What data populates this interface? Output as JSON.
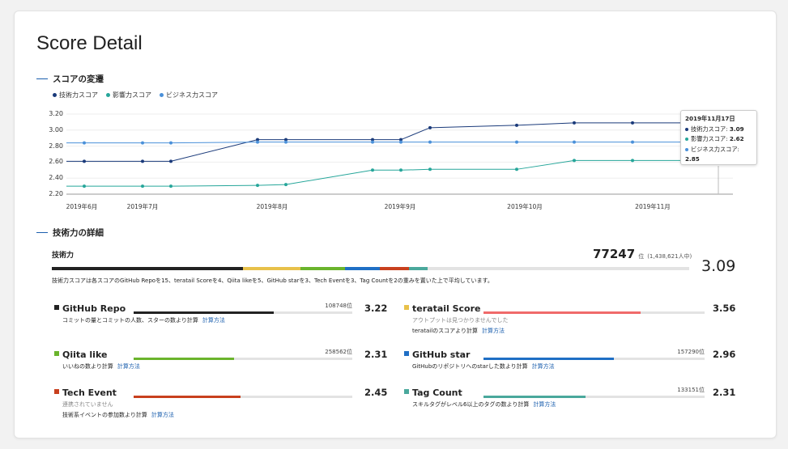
{
  "page_title": "Score Detail",
  "score_section": {
    "heading": "スコアの変遷"
  },
  "legend": [
    {
      "label": "技術力スコア",
      "color": "#1a3a7a"
    },
    {
      "label": "影響力スコア",
      "color": "#26a69a"
    },
    {
      "label": "ビジネス力スコア",
      "color": "#4a90d9"
    }
  ],
  "chart_data": {
    "type": "line",
    "ylim": [
      2.2,
      3.2
    ],
    "yticks": [
      "3.20",
      "3.00",
      "2.80",
      "2.60",
      "2.40",
      "2.20"
    ],
    "xticks": [
      "2019年6月",
      "2019年7月",
      "2019年8月",
      "2019年9月",
      "2019年10月",
      "2019年11月"
    ],
    "series": [
      {
        "name": "技術力スコア",
        "color": "#1a3a7a",
        "values": [
          2.61,
          2.61,
          2.61,
          2.88,
          2.88,
          2.88,
          2.88,
          3.03,
          3.06,
          3.09,
          3.09,
          3.09
        ]
      },
      {
        "name": "影響力スコア",
        "color": "#26a69a",
        "values": [
          2.3,
          2.3,
          2.3,
          2.31,
          2.32,
          2.5,
          2.5,
          2.51,
          2.51,
          2.62,
          2.62,
          2.62
        ]
      },
      {
        "name": "ビジネス力スコア",
        "color": "#4a90d9",
        "values": [
          2.84,
          2.84,
          2.84,
          2.85,
          2.85,
          2.85,
          2.85,
          2.85,
          2.85,
          2.85,
          2.85,
          2.85
        ]
      }
    ]
  },
  "tooltip": {
    "date": "2019年11月17日",
    "rows": [
      {
        "label": "技術力スコア:",
        "value": "3.09",
        "color": "#1a3a7a"
      },
      {
        "label": "影響力スコア:",
        "value": "2.62",
        "color": "#26a69a"
      },
      {
        "label": "ビジネス力スコア:",
        "value": "2.85",
        "color": "#4a90d9"
      }
    ]
  },
  "detail_section": {
    "heading": "技術力の詳細"
  },
  "skill": {
    "name": "技術力",
    "rank": "77247",
    "rank_unit": "位",
    "rank_total": "(1,438,621人中)",
    "score": "3.09",
    "description": "技術力スコアは各スコアのGitHub Repoを15、teratail Scoreを4、Qiita likeを5、GitHub starを3、Tech Eventを3、Tag Countを2の重みを置いた上で平均しています。",
    "segments": [
      {
        "color": "#222222",
        "weight": 30
      },
      {
        "color": "#e8c14a",
        "weight": 9
      },
      {
        "color": "#6ab42c",
        "weight": 7
      },
      {
        "color": "#1f6fc5",
        "weight": 5.5
      },
      {
        "color": "#c8401e",
        "weight": 4.5
      },
      {
        "color": "#4aa89c",
        "weight": 3
      }
    ]
  },
  "items": [
    {
      "name": "GitHub Repo",
      "color": "#222222",
      "rank": "108748位",
      "value": "3.22",
      "fill": 0.64,
      "sub": "コミットの量とコミットの人数、スターの数より計算",
      "sub_gray": "",
      "link": "計算方法"
    },
    {
      "name": "teratail Score",
      "color": "#e8c14a",
      "rank": "",
      "value": "3.56",
      "fill": 0.71,
      "bar_color": "#f06a6a",
      "sub_gray": "アウトプットは見つかりませんでした",
      "sub": "teratailのスコアより計算",
      "link": "計算方法"
    },
    {
      "name": "Qiita like",
      "color": "#6ab42c",
      "rank": "258562位",
      "value": "2.31",
      "fill": 0.46,
      "sub": "いいねの数より計算",
      "sub_gray": "",
      "link": "計算方法"
    },
    {
      "name": "GitHub star",
      "color": "#1f6fc5",
      "rank": "157290位",
      "value": "2.96",
      "fill": 0.59,
      "sub": "GitHubのリポジトリへのstarした数より計算",
      "sub_gray": "",
      "link": "計算方法"
    },
    {
      "name": "Tech Event",
      "color": "#c8401e",
      "rank": "",
      "value": "2.45",
      "fill": 0.49,
      "sub_gray": "連携されていません",
      "sub": "技術系イベントの参加数より計算",
      "link": "計算方法"
    },
    {
      "name": "Tag Count",
      "color": "#4aa89c",
      "rank": "133151位",
      "value": "2.31",
      "fill": 0.46,
      "sub": "スキルタグがレベル6以上のタグの数より計算",
      "sub_gray": "",
      "link": "計算方法"
    }
  ]
}
